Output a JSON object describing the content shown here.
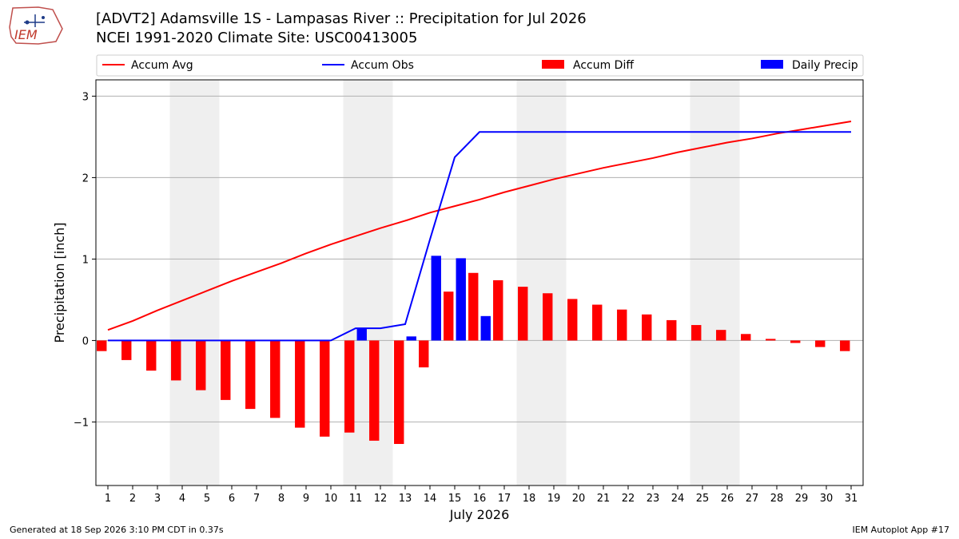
{
  "logo": {
    "text": "IEM"
  },
  "header": {
    "title": "[ADVT2] Adamsville 1S - Lampasas River :: Precipitation for Jul 2026",
    "subtitle": "NCEI 1991-2020 Climate Site: USC00413005"
  },
  "footer": {
    "left": "Generated at 18 Sep 2026 3:10 PM CDT in 0.37s",
    "right": "IEM Autoplot App #17"
  },
  "chart_data": {
    "type": "bar",
    "xlabel": "July 2026",
    "ylabel": "Precipitation [inch]",
    "ylim": [
      -1.78,
      3.2
    ],
    "yticks": [
      -1,
      0,
      1,
      2,
      3
    ],
    "ytick_labels": [
      "−1",
      "0",
      "1",
      "2",
      "3"
    ],
    "grid": "horizontal",
    "legend_placement": "top",
    "weekend_shading_days": [
      4,
      5,
      11,
      12,
      18,
      19,
      25,
      26
    ],
    "x": [
      "1",
      "2",
      "3",
      "4",
      "5",
      "6",
      "7",
      "8",
      "9",
      "10",
      "11",
      "12",
      "13",
      "14",
      "15",
      "16",
      "17",
      "18",
      "19",
      "20",
      "21",
      "22",
      "23",
      "24",
      "25",
      "26",
      "27",
      "28",
      "29",
      "30",
      "31"
    ],
    "series": [
      {
        "name": "Accum Avg",
        "kind": "line",
        "color": "#ff0000",
        "values": [
          0.13,
          0.24,
          0.37,
          0.49,
          0.61,
          0.73,
          0.84,
          0.95,
          1.07,
          1.18,
          1.28,
          1.38,
          1.47,
          1.57,
          1.65,
          1.73,
          1.82,
          1.9,
          1.98,
          2.05,
          2.12,
          2.18,
          2.24,
          2.31,
          2.37,
          2.43,
          2.48,
          2.54,
          2.59,
          2.64,
          2.69
        ]
      },
      {
        "name": "Accum Obs",
        "kind": "line",
        "color": "#0000ff",
        "values": [
          0,
          0,
          0,
          0,
          0,
          0,
          0,
          0,
          0,
          0,
          0.15,
          0.15,
          0.2,
          1.24,
          2.25,
          2.56,
          2.56,
          2.56,
          2.56,
          2.56,
          2.56,
          2.56,
          2.56,
          2.56,
          2.56,
          2.56,
          2.56,
          2.56,
          2.56,
          2.56,
          2.56
        ]
      },
      {
        "name": "Accum Diff",
        "kind": "bar",
        "color": "#ff0000",
        "values": [
          -0.13,
          -0.24,
          -0.37,
          -0.49,
          -0.61,
          -0.73,
          -0.84,
          -0.95,
          -1.07,
          -1.18,
          -1.13,
          -1.23,
          -1.27,
          -0.33,
          0.6,
          0.83,
          0.74,
          0.66,
          0.58,
          0.51,
          0.44,
          0.38,
          0.32,
          0.25,
          0.19,
          0.13,
          0.08,
          0.02,
          -0.03,
          -0.08,
          -0.13
        ]
      },
      {
        "name": "Daily Precip",
        "kind": "bar",
        "color": "#0000ff",
        "values": [
          0,
          0,
          0,
          0,
          0,
          0,
          0,
          0,
          0,
          0,
          0.15,
          0,
          0.05,
          1.04,
          1.01,
          0.3,
          0,
          0,
          0,
          0,
          0,
          0,
          0,
          0,
          0,
          0,
          0,
          0,
          0,
          0,
          0
        ]
      }
    ]
  }
}
